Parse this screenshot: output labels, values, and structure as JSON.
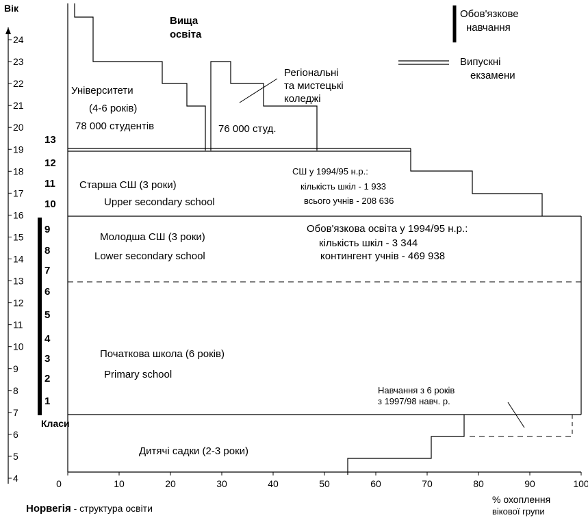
{
  "age_axis": {
    "label": "Вік",
    "ticks": [
      "24",
      "23",
      "22",
      "21",
      "20",
      "19",
      "18",
      "17",
      "16",
      "15",
      "14",
      "13",
      "12",
      "11",
      "10",
      "9",
      "8",
      "7",
      "6",
      "5",
      "4"
    ]
  },
  "x_axis": {
    "ticks": [
      "0",
      "10",
      "20",
      "30",
      "40",
      "50",
      "60",
      "70",
      "80",
      "90",
      "100"
    ],
    "label_line1": "% охоплення",
    "label_line2": "вікової групи"
  },
  "grades": {
    "label": "Класи",
    "items": [
      "13",
      "12",
      "11",
      "10",
      "9",
      "8",
      "7",
      "6",
      "5",
      "4",
      "3",
      "2",
      "1"
    ]
  },
  "legend": {
    "compulsory": [
      "Обов'язкове",
      "навчання"
    ],
    "exams": [
      "Випускні",
      "екзамени"
    ]
  },
  "higher_ed": {
    "title": [
      "Вища",
      "освіта"
    ],
    "universities": {
      "name": "Університети",
      "duration": "(4-6 років)",
      "students": "78 000 студентів"
    },
    "colleges": {
      "name": [
        "Регіональні",
        "та мистецькі",
        "коледжі"
      ],
      "students": "76 000 студ."
    }
  },
  "upper_secondary": {
    "title_uk": "Старша СШ (3 роки)",
    "title_en": "Upper secondary school",
    "stats": [
      "СШ у 1994/95 н.р.:",
      "кількість шкіл - 1 933",
      "всього учнів - 208 636"
    ]
  },
  "lower_secondary": {
    "title_uk": "Молодша СШ   (3 роки)",
    "title_en": "Lower secondary school",
    "stats": [
      "Обов'язкова освіта у 1994/95 н.р.:",
      "кількість шкіл -  3 344",
      "контингент учнів - 469 938"
    ]
  },
  "primary": {
    "title_uk": "Початкова школа  (6 років)",
    "title_en": "Primary school",
    "note": [
      "Навчання з 6 років",
      "з 1997/98 навч. р."
    ]
  },
  "preschool": {
    "title": "Дитячі садки  (2-3 роки)"
  },
  "footer": {
    "country": "Норвегія",
    "caption": " -  структура освіти"
  }
}
